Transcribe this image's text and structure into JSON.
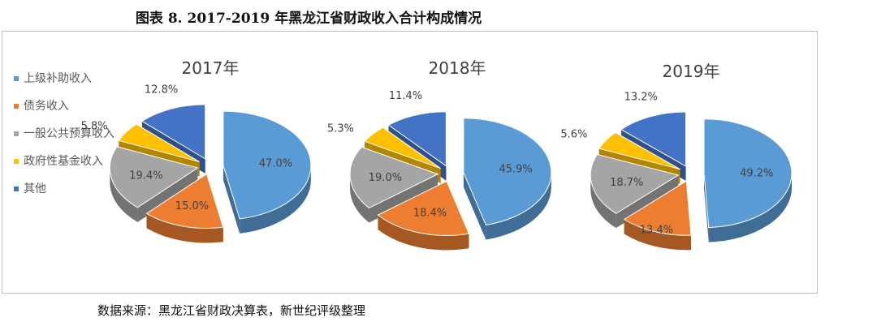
{
  "figure_title": "图表 8. 2017-2019 年黑龙江省财政收入合计构成情况",
  "source_note": "数据来源：黑龙江省财政决算表，新世纪评级整理",
  "colors": {
    "上级补助收入": "#5b9bd5",
    "债务收入": "#ed7d31",
    "一般公共预算收入": "#a5a5a5",
    "政府性基金收入": "#ffc000",
    "其他": "#4472c4"
  },
  "legend": [
    {
      "label": "上级补助收入",
      "color": "#5b9bd5"
    },
    {
      "label": "债务收入",
      "color": "#ed7d31"
    },
    {
      "label": "一般公共预算收入",
      "color": "#a5a5a5"
    },
    {
      "label": "政府性基金收入",
      "color": "#ffc000"
    },
    {
      "label": "其他",
      "color": "#4472c4"
    }
  ],
  "chart_data": [
    {
      "type": "pie",
      "title": "2017年",
      "categories": [
        "上级补助收入",
        "债务收入",
        "一般公共预算收入",
        "政府性基金收入",
        "其他"
      ],
      "values": [
        47.0,
        15.0,
        19.4,
        5.8,
        12.8
      ],
      "labels": [
        "47.0%",
        "15.0%",
        "19.4%",
        "5.8%",
        "12.8%"
      ]
    },
    {
      "type": "pie",
      "title": "2018年",
      "categories": [
        "上级补助收入",
        "债务收入",
        "一般公共预算收入",
        "政府性基金收入",
        "其他"
      ],
      "values": [
        45.9,
        18.4,
        19.0,
        5.3,
        11.4
      ],
      "labels": [
        "45.9%",
        "18.4%",
        "19.0%",
        "5.3%",
        "11.4%"
      ]
    },
    {
      "type": "pie",
      "title": "2019年",
      "categories": [
        "上级补助收入",
        "债务收入",
        "一般公共预算收入",
        "政府性基金收入",
        "其他"
      ],
      "values": [
        49.2,
        13.4,
        18.7,
        5.6,
        13.2
      ],
      "labels": [
        "49.2%",
        "13.4%",
        "18.7%",
        "5.6%",
        "13.2%"
      ]
    }
  ]
}
